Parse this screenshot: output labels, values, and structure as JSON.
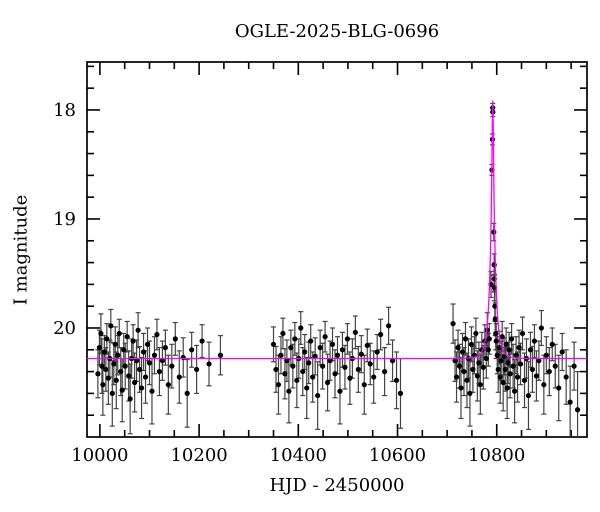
{
  "title": "OGLE-2025-BLG-0696",
  "colors": {
    "background": "#ffffff",
    "frame": "#000000",
    "tick_labels": "#000000",
    "data_points": "#000000",
    "error_bars": "#444444",
    "model_curve": "#ff00ff"
  },
  "chart_data": {
    "type": "scatter",
    "title": "OGLE-2025-BLG-0696",
    "xlabel": "HJD - 2450000",
    "ylabel": "I magnitude",
    "xlim": [
      9974,
      10982
    ],
    "ylim": [
      17.56,
      21.0
    ],
    "y_axis_inverted": true,
    "grid": false,
    "legend": null,
    "x_major_ticks": [
      10000,
      10200,
      10400,
      10600,
      10800
    ],
    "x_minor_step": 50,
    "y_major_ticks": [
      18,
      19,
      20
    ],
    "y_minor_step": 0.2,
    "model": {
      "name": "paczynski-microlensing",
      "t0": 10792.0,
      "tE": 11.0,
      "u0": 0.115,
      "I0": 20.28,
      "peak_mag": 17.93
    },
    "points_format": [
      "hjd_minus_2450000",
      "I_mag",
      "mag_error"
    ],
    "points": [
      [
        9996,
        20.42,
        0.22
      ],
      [
        9999,
        20.18,
        0.16
      ],
      [
        10002,
        20.05,
        0.18
      ],
      [
        10004,
        20.35,
        0.25
      ],
      [
        10006,
        20.52,
        0.28
      ],
      [
        10009,
        20.22,
        0.15
      ],
      [
        10012,
        20.38,
        0.2
      ],
      [
        10014,
        20.1,
        0.14
      ],
      [
        10017,
        20.46,
        0.24
      ],
      [
        10020,
        20.28,
        0.17
      ],
      [
        10022,
        19.98,
        0.15
      ],
      [
        10025,
        20.6,
        0.3
      ],
      [
        10028,
        20.33,
        0.19
      ],
      [
        10031,
        20.15,
        0.16
      ],
      [
        10033,
        20.48,
        0.26
      ],
      [
        10036,
        20.25,
        0.18
      ],
      [
        10039,
        20.05,
        0.13
      ],
      [
        10042,
        20.4,
        0.22
      ],
      [
        10045,
        20.57,
        0.29
      ],
      [
        10048,
        20.2,
        0.15
      ],
      [
        10051,
        20.35,
        0.21
      ],
      [
        10055,
        20.08,
        0.14
      ],
      [
        10058,
        20.44,
        0.23
      ],
      [
        10061,
        20.65,
        0.32
      ],
      [
        10064,
        20.28,
        0.18
      ],
      [
        10067,
        20.12,
        0.15
      ],
      [
        10070,
        20.5,
        0.27
      ],
      [
        10074,
        20.3,
        0.19
      ],
      [
        10077,
        20.02,
        0.16
      ],
      [
        10080,
        20.38,
        0.21
      ],
      [
        10084,
        20.55,
        0.28
      ],
      [
        10088,
        20.22,
        0.17
      ],
      [
        10092,
        20.45,
        0.24
      ],
      [
        10096,
        20.15,
        0.15
      ],
      [
        10100,
        20.32,
        0.2
      ],
      [
        10105,
        20.58,
        0.3
      ],
      [
        10110,
        20.25,
        0.17
      ],
      [
        10115,
        20.06,
        0.14
      ],
      [
        10120,
        20.4,
        0.22
      ],
      [
        10126,
        20.3,
        0.18
      ],
      [
        10132,
        20.18,
        0.16
      ],
      [
        10138,
        20.52,
        0.27
      ],
      [
        10145,
        20.35,
        0.2
      ],
      [
        10152,
        20.1,
        0.15
      ],
      [
        10160,
        20.45,
        0.24
      ],
      [
        10168,
        20.27,
        0.18
      ],
      [
        10176,
        20.6,
        0.31
      ],
      [
        10185,
        20.2,
        0.16
      ],
      [
        10195,
        20.38,
        0.22
      ],
      [
        10206,
        20.12,
        0.15
      ],
      [
        10220,
        20.33,
        0.2
      ],
      [
        10243,
        20.25,
        0.18
      ],
      [
        10350,
        20.15,
        0.16
      ],
      [
        10355,
        20.38,
        0.21
      ],
      [
        10360,
        20.52,
        0.27
      ],
      [
        10365,
        20.25,
        0.17
      ],
      [
        10369,
        20.05,
        0.14
      ],
      [
        10373,
        20.42,
        0.23
      ],
      [
        10377,
        20.3,
        0.19
      ],
      [
        10381,
        20.58,
        0.29
      ],
      [
        10385,
        20.18,
        0.16
      ],
      [
        10389,
        20.35,
        0.2
      ],
      [
        10393,
        20.1,
        0.15
      ],
      [
        10397,
        20.48,
        0.25
      ],
      [
        10401,
        20.28,
        0.18
      ],
      [
        10405,
        20.0,
        0.15
      ],
      [
        10409,
        20.4,
        0.22
      ],
      [
        10413,
        20.22,
        0.16
      ],
      [
        10417,
        20.55,
        0.28
      ],
      [
        10421,
        20.32,
        0.19
      ],
      [
        10425,
        20.12,
        0.15
      ],
      [
        10429,
        20.45,
        0.23
      ],
      [
        10434,
        20.26,
        0.17
      ],
      [
        10439,
        20.62,
        0.31
      ],
      [
        10444,
        20.18,
        0.16
      ],
      [
        10449,
        20.35,
        0.21
      ],
      [
        10454,
        20.08,
        0.14
      ],
      [
        10459,
        20.5,
        0.26
      ],
      [
        10464,
        20.3,
        0.18
      ],
      [
        10469,
        20.15,
        0.15
      ],
      [
        10474,
        20.42,
        0.22
      ],
      [
        10479,
        20.25,
        0.17
      ],
      [
        10484,
        20.58,
        0.3
      ],
      [
        10489,
        20.2,
        0.16
      ],
      [
        10494,
        20.36,
        0.2
      ],
      [
        10499,
        20.1,
        0.14
      ],
      [
        10504,
        20.46,
        0.24
      ],
      [
        10509,
        20.28,
        0.18
      ],
      [
        10515,
        20.04,
        0.15
      ],
      [
        10521,
        20.38,
        0.21
      ],
      [
        10527,
        20.24,
        0.17
      ],
      [
        10533,
        20.52,
        0.27
      ],
      [
        10539,
        20.16,
        0.15
      ],
      [
        10545,
        20.33,
        0.19
      ],
      [
        10552,
        20.45,
        0.24
      ],
      [
        10559,
        20.22,
        0.16
      ],
      [
        10566,
        20.06,
        0.14
      ],
      [
        10574,
        20.4,
        0.22
      ],
      [
        10582,
        19.98,
        0.17
      ],
      [
        10590,
        20.3,
        0.19
      ],
      [
        10598,
        20.48,
        0.26
      ],
      [
        10606,
        20.6,
        0.32
      ],
      [
        10712,
        19.96,
        0.18
      ],
      [
        10716,
        20.3,
        0.19
      ],
      [
        10719,
        20.45,
        0.23
      ],
      [
        10722,
        20.18,
        0.16
      ],
      [
        10725,
        20.35,
        0.2
      ],
      [
        10728,
        20.55,
        0.28
      ],
      [
        10731,
        20.22,
        0.17
      ],
      [
        10734,
        20.4,
        0.22
      ],
      [
        10737,
        20.1,
        0.15
      ],
      [
        10740,
        20.48,
        0.25
      ],
      [
        10743,
        20.28,
        0.18
      ],
      [
        10746,
        20.6,
        0.3
      ],
      [
        10749,
        20.15,
        0.16
      ],
      [
        10752,
        20.38,
        0.21
      ],
      [
        10755,
        20.25,
        0.17
      ],
      [
        10758,
        20.05,
        0.14
      ],
      [
        10761,
        20.44,
        0.23
      ],
      [
        10764,
        20.32,
        0.19
      ],
      [
        10767,
        20.52,
        0.27
      ],
      [
        10770,
        20.2,
        0.16
      ],
      [
        10773,
        20.36,
        0.2
      ],
      [
        10776,
        20.12,
        0.15
      ],
      [
        10779,
        20.28,
        0.18
      ],
      [
        10781,
        20.02,
        0.16
      ],
      [
        10783,
        20.2,
        0.15
      ],
      [
        10785,
        20.1,
        0.14
      ],
      [
        10788.5,
        19.6,
        0.12
      ],
      [
        10790.3,
        18.55,
        0.05
      ],
      [
        10791.3,
        18.27,
        0.05
      ],
      [
        10791.9,
        17.98,
        0.04
      ],
      [
        10792.1,
        18.02,
        0.04
      ],
      [
        10794.1,
        19.12,
        0.08
      ],
      [
        10794.8,
        19.42,
        0.1
      ],
      [
        10795.1,
        19.55,
        0.12
      ],
      [
        10795.5,
        19.63,
        0.12
      ],
      [
        10796.2,
        19.8,
        0.14
      ],
      [
        10797.0,
        19.92,
        0.15
      ],
      [
        10798.0,
        20.05,
        0.15
      ],
      [
        10799,
        20.12,
        0.16
      ],
      [
        10801,
        20.25,
        0.17
      ],
      [
        10803,
        20.38,
        0.21
      ],
      [
        10805,
        20.18,
        0.15
      ],
      [
        10807,
        20.45,
        0.24
      ],
      [
        10809,
        20.3,
        0.18
      ],
      [
        10811,
        20.08,
        0.14
      ],
      [
        10813,
        20.5,
        0.26
      ],
      [
        10815,
        20.26,
        0.17
      ],
      [
        10817,
        20.38,
        0.2
      ],
      [
        10819,
        20.15,
        0.15
      ],
      [
        10821,
        20.55,
        0.28
      ],
      [
        10823,
        20.32,
        0.19
      ],
      [
        10825,
        20.2,
        0.16
      ],
      [
        10827,
        20.42,
        0.22
      ],
      [
        10830,
        20.1,
        0.14
      ],
      [
        10833,
        20.35,
        0.2
      ],
      [
        10836,
        20.58,
        0.29
      ],
      [
        10839,
        20.25,
        0.17
      ],
      [
        10842,
        20.45,
        0.23
      ],
      [
        10845,
        20.18,
        0.16
      ],
      [
        10848,
        20.33,
        0.19
      ],
      [
        10852,
        20.05,
        0.15
      ],
      [
        10856,
        20.48,
        0.25
      ],
      [
        10860,
        20.28,
        0.18
      ],
      [
        10864,
        20.62,
        0.31
      ],
      [
        10868,
        20.2,
        0.16
      ],
      [
        10872,
        20.38,
        0.21
      ],
      [
        10876,
        20.12,
        0.15
      ],
      [
        10880,
        20.44,
        0.23
      ],
      [
        10885,
        20.3,
        0.18
      ],
      [
        10890,
        20.0,
        0.16
      ],
      [
        10895,
        20.52,
        0.27
      ],
      [
        10900,
        20.25,
        0.17
      ],
      [
        10906,
        20.4,
        0.22
      ],
      [
        10912,
        20.15,
        0.15
      ],
      [
        10918,
        20.35,
        0.2
      ],
      [
        10925,
        20.55,
        0.3
      ],
      [
        10932,
        20.22,
        0.17
      ],
      [
        10940,
        20.45,
        0.25
      ],
      [
        10948,
        20.68,
        0.33
      ],
      [
        10956,
        20.35,
        0.22
      ],
      [
        10963,
        20.75,
        0.35
      ]
    ]
  }
}
